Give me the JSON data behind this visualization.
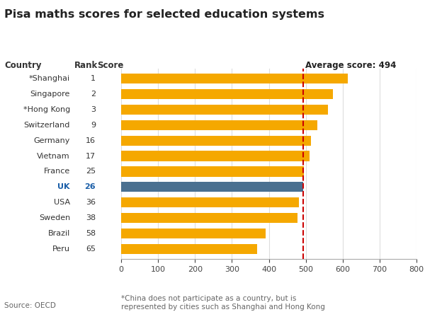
{
  "title": "Pisa maths scores for selected education systems",
  "countries": [
    "*Shanghai",
    "Singapore",
    "*Hong Kong",
    "Switzerland",
    "Germany",
    "Vietnam",
    "France",
    "UK",
    "USA",
    "Sweden",
    "Brazil",
    "Peru"
  ],
  "ranks": [
    "1",
    "2",
    "3",
    "9",
    "16",
    "17",
    "25",
    "26",
    "36",
    "38",
    "58",
    "65"
  ],
  "scores": [
    613,
    573,
    561,
    531,
    514,
    511,
    495,
    494,
    481,
    478,
    391,
    368
  ],
  "bar_colors": [
    "#F5A800",
    "#F5A800",
    "#F5A800",
    "#F5A800",
    "#F5A800",
    "#F5A800",
    "#F5A800",
    "#4A7090",
    "#F5A800",
    "#F5A800",
    "#F5A800",
    "#F5A800"
  ],
  "average_score": 494,
  "average_label": "Average score: 494",
  "xlim": [
    0,
    800
  ],
  "xticks": [
    0,
    100,
    200,
    300,
    400,
    500,
    600,
    700,
    800
  ],
  "source_text": "Source: OECD",
  "footnote_text": "*China does not participate as a country, but is\nrepresented by cities such as Shanghai and Hong Kong",
  "bg_color": "#FFFFFF",
  "bar_height": 0.65,
  "grid_color": "#DDDDDD",
  "avg_line_color": "#CC0000",
  "uk_label_color": "#1A5EA8",
  "gold_color": "#F5A800",
  "header_color": "#333333"
}
